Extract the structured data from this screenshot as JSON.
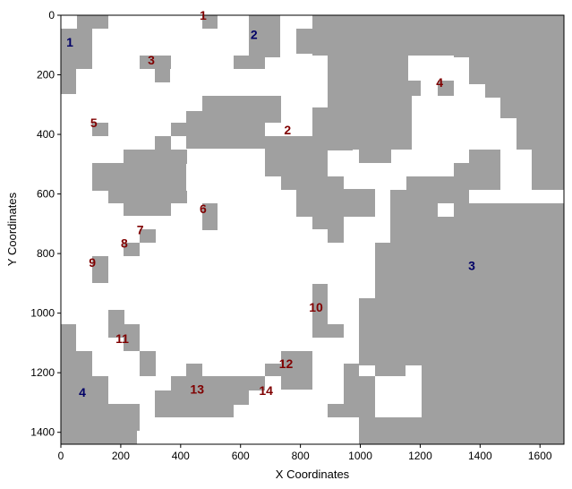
{
  "map": {
    "xlabel": "X Coordinates",
    "ylabel": "Y Coordinates",
    "x_ticks": [
      0,
      200,
      400,
      600,
      800,
      1000,
      1200,
      1400,
      1600
    ],
    "y_ticks": [
      0,
      200,
      400,
      600,
      800,
      1000,
      1200,
      1400
    ],
    "xlim": [
      0,
      1680
    ],
    "ylim": [
      1440,
      0
    ],
    "colors": {
      "obstacle": "#a0a0a0",
      "free": "#ffffff",
      "label_red": "#800000",
      "label_blue": "#000066"
    },
    "labels_red": [
      {
        "text": "1",
        "x": 475,
        "y": 0
      },
      {
        "text": "2",
        "x": 757,
        "y": 385
      },
      {
        "text": "3",
        "x": 302,
        "y": 150
      },
      {
        "text": "4",
        "x": 1265,
        "y": 225
      },
      {
        "text": "5",
        "x": 110,
        "y": 360
      },
      {
        "text": "6",
        "x": 475,
        "y": 650
      },
      {
        "text": "7",
        "x": 265,
        "y": 720
      },
      {
        "text": "8",
        "x": 212,
        "y": 765
      },
      {
        "text": "9",
        "x": 105,
        "y": 830
      },
      {
        "text": "10",
        "x": 852,
        "y": 980
      },
      {
        "text": "11",
        "x": 205,
        "y": 1085
      },
      {
        "text": "12",
        "x": 752,
        "y": 1170
      },
      {
        "text": "13",
        "x": 455,
        "y": 1255
      },
      {
        "text": "14",
        "x": 685,
        "y": 1260
      }
    ],
    "labels_blue": [
      {
        "text": "1",
        "x": 30,
        "y": 90
      },
      {
        "text": "2",
        "x": 645,
        "y": 65
      },
      {
        "text": "3",
        "x": 1372,
        "y": 840
      },
      {
        "text": "4",
        "x": 72,
        "y": 1265
      }
    ]
  }
}
